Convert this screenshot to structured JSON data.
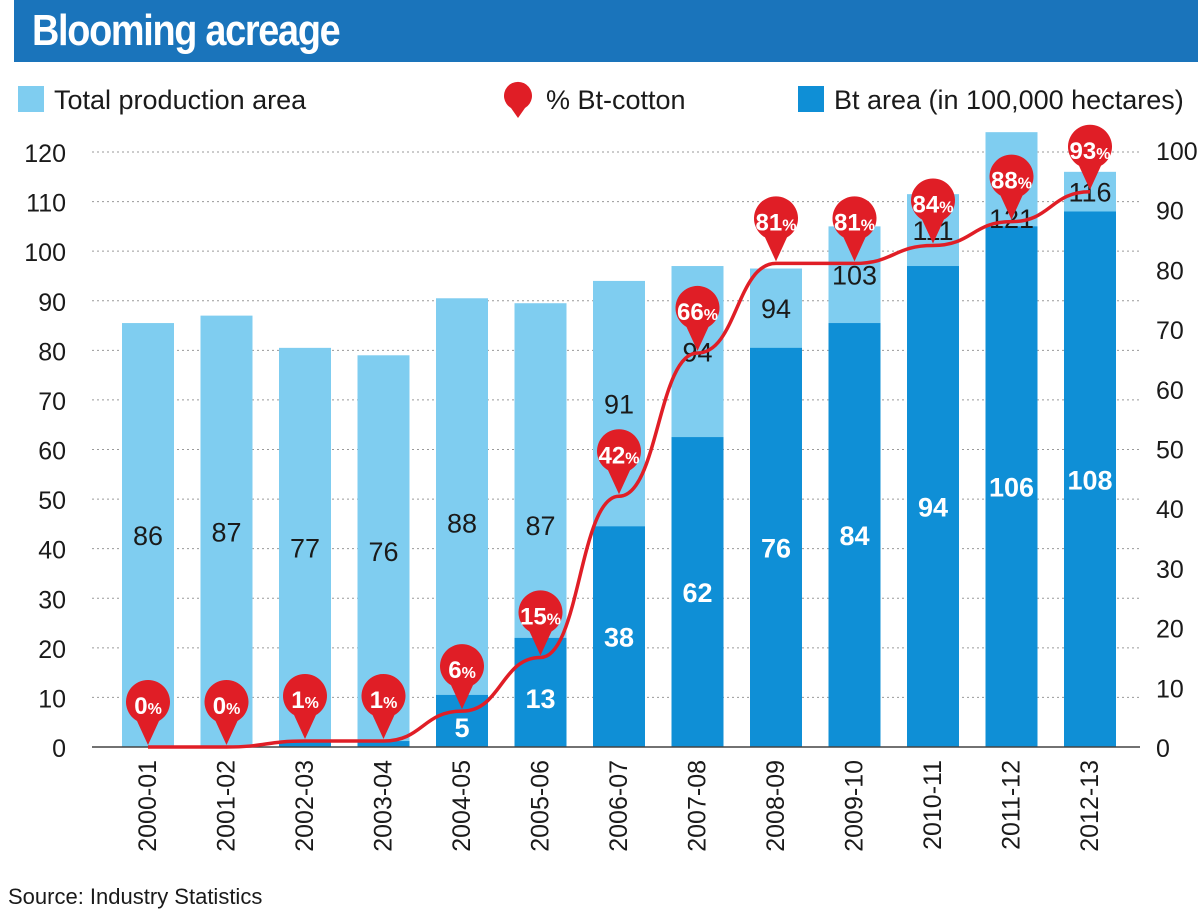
{
  "title": "Blooming acreage",
  "source": "Source: Industry Statistics",
  "legend": {
    "total": "Total production area",
    "pct": "% Bt-cotton",
    "bt": "Bt area (in 100,000 hectares)"
  },
  "colors": {
    "header": "#1a74bb",
    "total": "#7fcdf0",
    "bt": "#0f8fd6",
    "pct": "#e01e26",
    "grid": "#9a9a9a",
    "text": "#1a1a1a"
  },
  "chart_data": {
    "type": "bar",
    "title": "Blooming acreage",
    "categories": [
      "2000-01",
      "2001-02",
      "2002-03",
      "2003-04",
      "2004-05",
      "2005-06",
      "2006-07",
      "2007-08",
      "2008-09",
      "2009-10",
      "2010-11",
      "2011-12",
      "2012-13"
    ],
    "series": [
      {
        "name": "Total production area",
        "type": "bar",
        "axis": "left",
        "values": [
          86,
          87,
          77,
          76,
          88,
          87,
          91,
          94,
          94,
          103,
          111,
          121,
          116
        ]
      },
      {
        "name": "Bt area (in 100,000 hectares)",
        "type": "bar",
        "axis": "left",
        "values": [
          0,
          0,
          1,
          1,
          5,
          13,
          38,
          62,
          76,
          84,
          94,
          106,
          108
        ]
      },
      {
        "name": "% Bt-cotton",
        "type": "line",
        "axis": "right",
        "values": [
          0,
          0,
          1,
          1,
          6,
          15,
          42,
          66,
          81,
          81,
          84,
          88,
          93
        ]
      }
    ],
    "bar_heights": {
      "total": [
        85.5,
        87,
        80.5,
        79,
        90.5,
        89.5,
        94,
        97,
        96.5,
        105,
        111.5,
        124,
        116
      ],
      "bt": [
        0,
        0,
        1.2,
        1.2,
        10.5,
        22,
        44.5,
        62.5,
        80.5,
        85.5,
        97,
        105,
        108
      ]
    },
    "pct_labels": [
      "0%",
      "0%",
      "1%",
      "1%",
      "6%",
      "15%",
      "42%",
      "66%",
      "81%",
      "81%",
      "84%",
      "88%",
      "93%"
    ],
    "left_axis": {
      "ylim": [
        0,
        120
      ],
      "ticks": [
        0,
        10,
        20,
        30,
        40,
        50,
        60,
        70,
        80,
        90,
        100,
        110,
        120
      ]
    },
    "right_axis": {
      "ylim": [
        0,
        100
      ],
      "ticks": [
        0,
        10,
        20,
        30,
        40,
        50,
        60,
        70,
        80,
        90,
        100
      ]
    },
    "grid": true,
    "legend_position": "top"
  }
}
